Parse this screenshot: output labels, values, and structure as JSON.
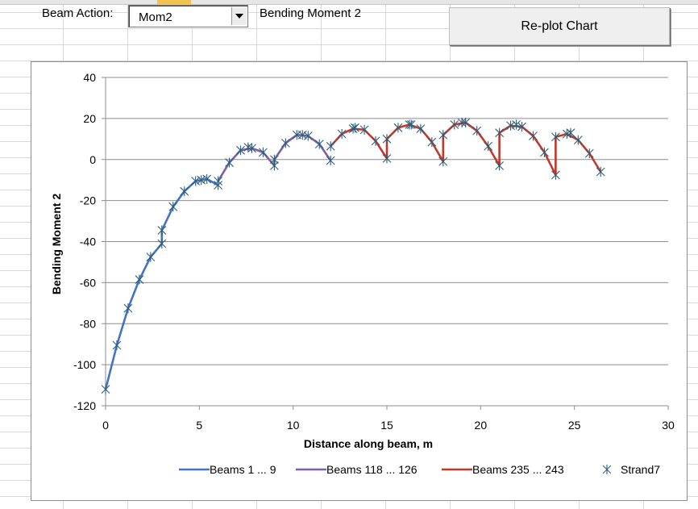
{
  "controls": {
    "beam_action_label": "Beam Action:",
    "beam_action_value": "Mom2",
    "action_description": "Bending Moment 2",
    "replot_label": "Re-plot Chart"
  },
  "colors": {
    "series_beams_1_9": "#4472c4",
    "series_beams_118_126": "#7f5fa6",
    "series_beams_235_243": "#c0392b",
    "series_strand7": "#2f5f7a",
    "gridline": "#8c8c8c"
  },
  "chart_data": {
    "type": "line",
    "title": "",
    "xlabel": "Distance along beam, m",
    "ylabel": "Bending Moment 2",
    "xlim": [
      0,
      30
    ],
    "ylim": [
      -120,
      40
    ],
    "x_ticks": [
      0,
      5,
      10,
      15,
      20,
      25,
      30
    ],
    "y_ticks": [
      40,
      20,
      0,
      -20,
      -40,
      -60,
      -80,
      -100,
      -120
    ],
    "grid": "horizontal major gridlines",
    "legend_position": "bottom",
    "series": [
      {
        "name": "Beams 1 ... 9",
        "color": "#4472c4",
        "x": [
          0,
          0.6,
          1.2,
          1.8,
          2.4,
          3.0,
          3.0,
          3.6,
          4.2,
          4.8,
          5.4,
          6.0
        ],
        "y": [
          -112,
          -90.5,
          -72.5,
          -58.5,
          -47.5,
          -41,
          -34.5,
          -23,
          -15.5,
          -10.5,
          -9.5,
          -12.5
        ]
      },
      {
        "name": "Beams 118 ... 126",
        "color": "#7f5fa6",
        "x": [
          6.0,
          6.6,
          7.2,
          7.8,
          8.4,
          9.0,
          9.0,
          9.6,
          10.2,
          10.8,
          11.4,
          12.0
        ],
        "y": [
          -10.5,
          -1.5,
          4.5,
          5.5,
          3.5,
          -3,
          0,
          8,
          12,
          11.5,
          7.5,
          -0.5
        ]
      },
      {
        "name": "Beams 235 ... 243",
        "color": "#c0392b",
        "x": [
          12.0,
          12.6,
          13.2,
          13.8,
          14.4,
          15.0,
          15.0,
          15.6,
          16.2,
          16.8,
          17.4,
          18.0,
          18.0,
          18.6,
          19.2,
          19.8,
          20.4,
          21.0,
          21.0,
          21.6,
          22.2,
          22.8,
          23.4,
          24.0,
          24.0,
          24.6,
          25.2,
          25.8,
          26.4
        ],
        "y": [
          6.5,
          12.5,
          15,
          14.5,
          9,
          0.5,
          10,
          15.5,
          17,
          15,
          8.5,
          -1,
          12,
          17,
          18,
          14,
          6.5,
          -3,
          13,
          16.5,
          16,
          11.5,
          3.5,
          -7.5,
          11,
          12.5,
          9.5,
          3,
          -6
        ]
      },
      {
        "name": "Strand7",
        "color": "#2f5f7a",
        "marker": "asterisk",
        "x": [
          0,
          0.6,
          1.2,
          1.8,
          2.4,
          3.0,
          3.0,
          3.6,
          4.2,
          4.8,
          5.4,
          6.0,
          6.0,
          6.6,
          7.2,
          7.8,
          8.4,
          9.0,
          9.0,
          9.6,
          10.2,
          10.8,
          11.4,
          12.0,
          12.0,
          12.6,
          13.2,
          13.8,
          14.4,
          15.0,
          15.0,
          15.6,
          16.2,
          16.8,
          17.4,
          18.0,
          18.0,
          18.6,
          19.2,
          19.8,
          20.4,
          21.0,
          21.0,
          21.6,
          22.2,
          22.8,
          23.4,
          24.0,
          24.0,
          24.6,
          25.2,
          25.8,
          26.4,
          5.1,
          7.6,
          10.5,
          13.3,
          16.3,
          19.0,
          21.9,
          24.8
        ],
        "y": [
          -112,
          -90.5,
          -72.5,
          -58.5,
          -47.5,
          -41,
          -34.5,
          -23,
          -15.5,
          -10.5,
          -9.5,
          -12.5,
          -10.5,
          -1.5,
          4.5,
          5.5,
          3.5,
          -3,
          0,
          8,
          12,
          11.5,
          7.5,
          -0.5,
          6.5,
          12.5,
          15,
          14.5,
          9,
          0.5,
          10,
          15.5,
          17,
          15,
          8.5,
          -1,
          12,
          17,
          18,
          14,
          6.5,
          -3,
          13,
          16.5,
          16,
          11.5,
          3.5,
          -7.5,
          11,
          12.5,
          9.5,
          3,
          -6,
          -10,
          6,
          12,
          15.5,
          17,
          18,
          17,
          13
        ]
      }
    ]
  }
}
